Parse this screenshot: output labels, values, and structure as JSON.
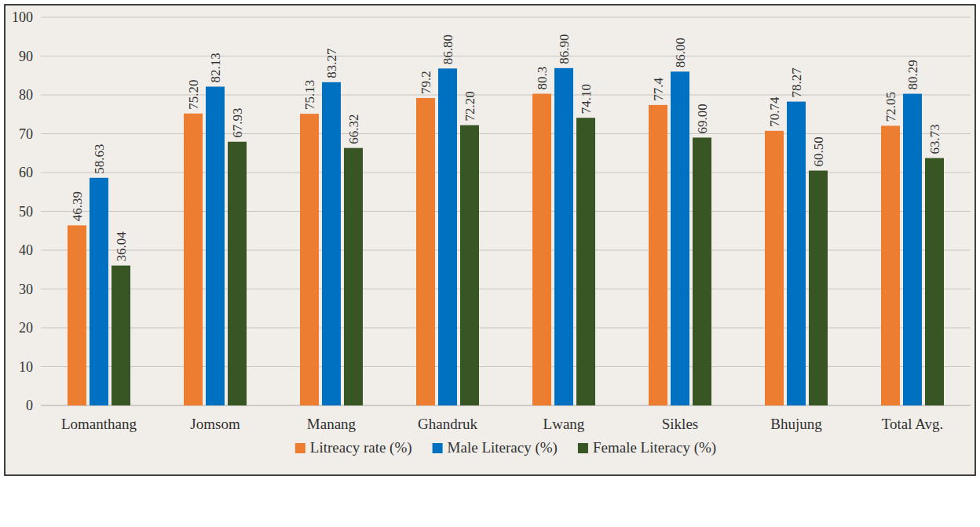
{
  "chart_data": {
    "type": "bar",
    "categories": [
      "Lomanthang",
      "Jomsom",
      "Manang",
      "Ghandruk",
      "Lwang",
      "Sikles",
      "Bhujung",
      "Total Avg."
    ],
    "series": [
      {
        "name": "Litreacy rate (%)",
        "color": "#ed7d31",
        "values": [
          46.39,
          75.2,
          75.13,
          79.2,
          80.3,
          77.4,
          70.74,
          72.05
        ],
        "value_labels": [
          "46.39",
          "75.20",
          "75.13",
          "79.2",
          "80.3",
          "77.4",
          "70.74",
          "72.05"
        ]
      },
      {
        "name": "Male Literacy (%)",
        "color": "#0070c0",
        "values": [
          58.63,
          82.13,
          83.27,
          86.8,
          86.9,
          86,
          78.27,
          80.29
        ],
        "value_labels": [
          "58.63",
          "82.13",
          "83.27",
          "86.80",
          "86.90",
          "86.00",
          "78.27",
          "80.29"
        ]
      },
      {
        "name": "Female Literacy (%)",
        "color": "#375623",
        "values": [
          36.04,
          67.93,
          66.32,
          72.2,
          74.1,
          69,
          60.5,
          63.73
        ],
        "value_labels": [
          "36.04",
          "67.93",
          "66.32",
          "72.20",
          "74.10",
          "69.00",
          "60.50",
          "63.73"
        ]
      }
    ],
    "ylim": [
      0,
      100
    ],
    "yticks": [
      0,
      10,
      20,
      30,
      40,
      50,
      60,
      70,
      80,
      90,
      100
    ],
    "grid": true,
    "data_labels": true,
    "legend": "bottom"
  }
}
